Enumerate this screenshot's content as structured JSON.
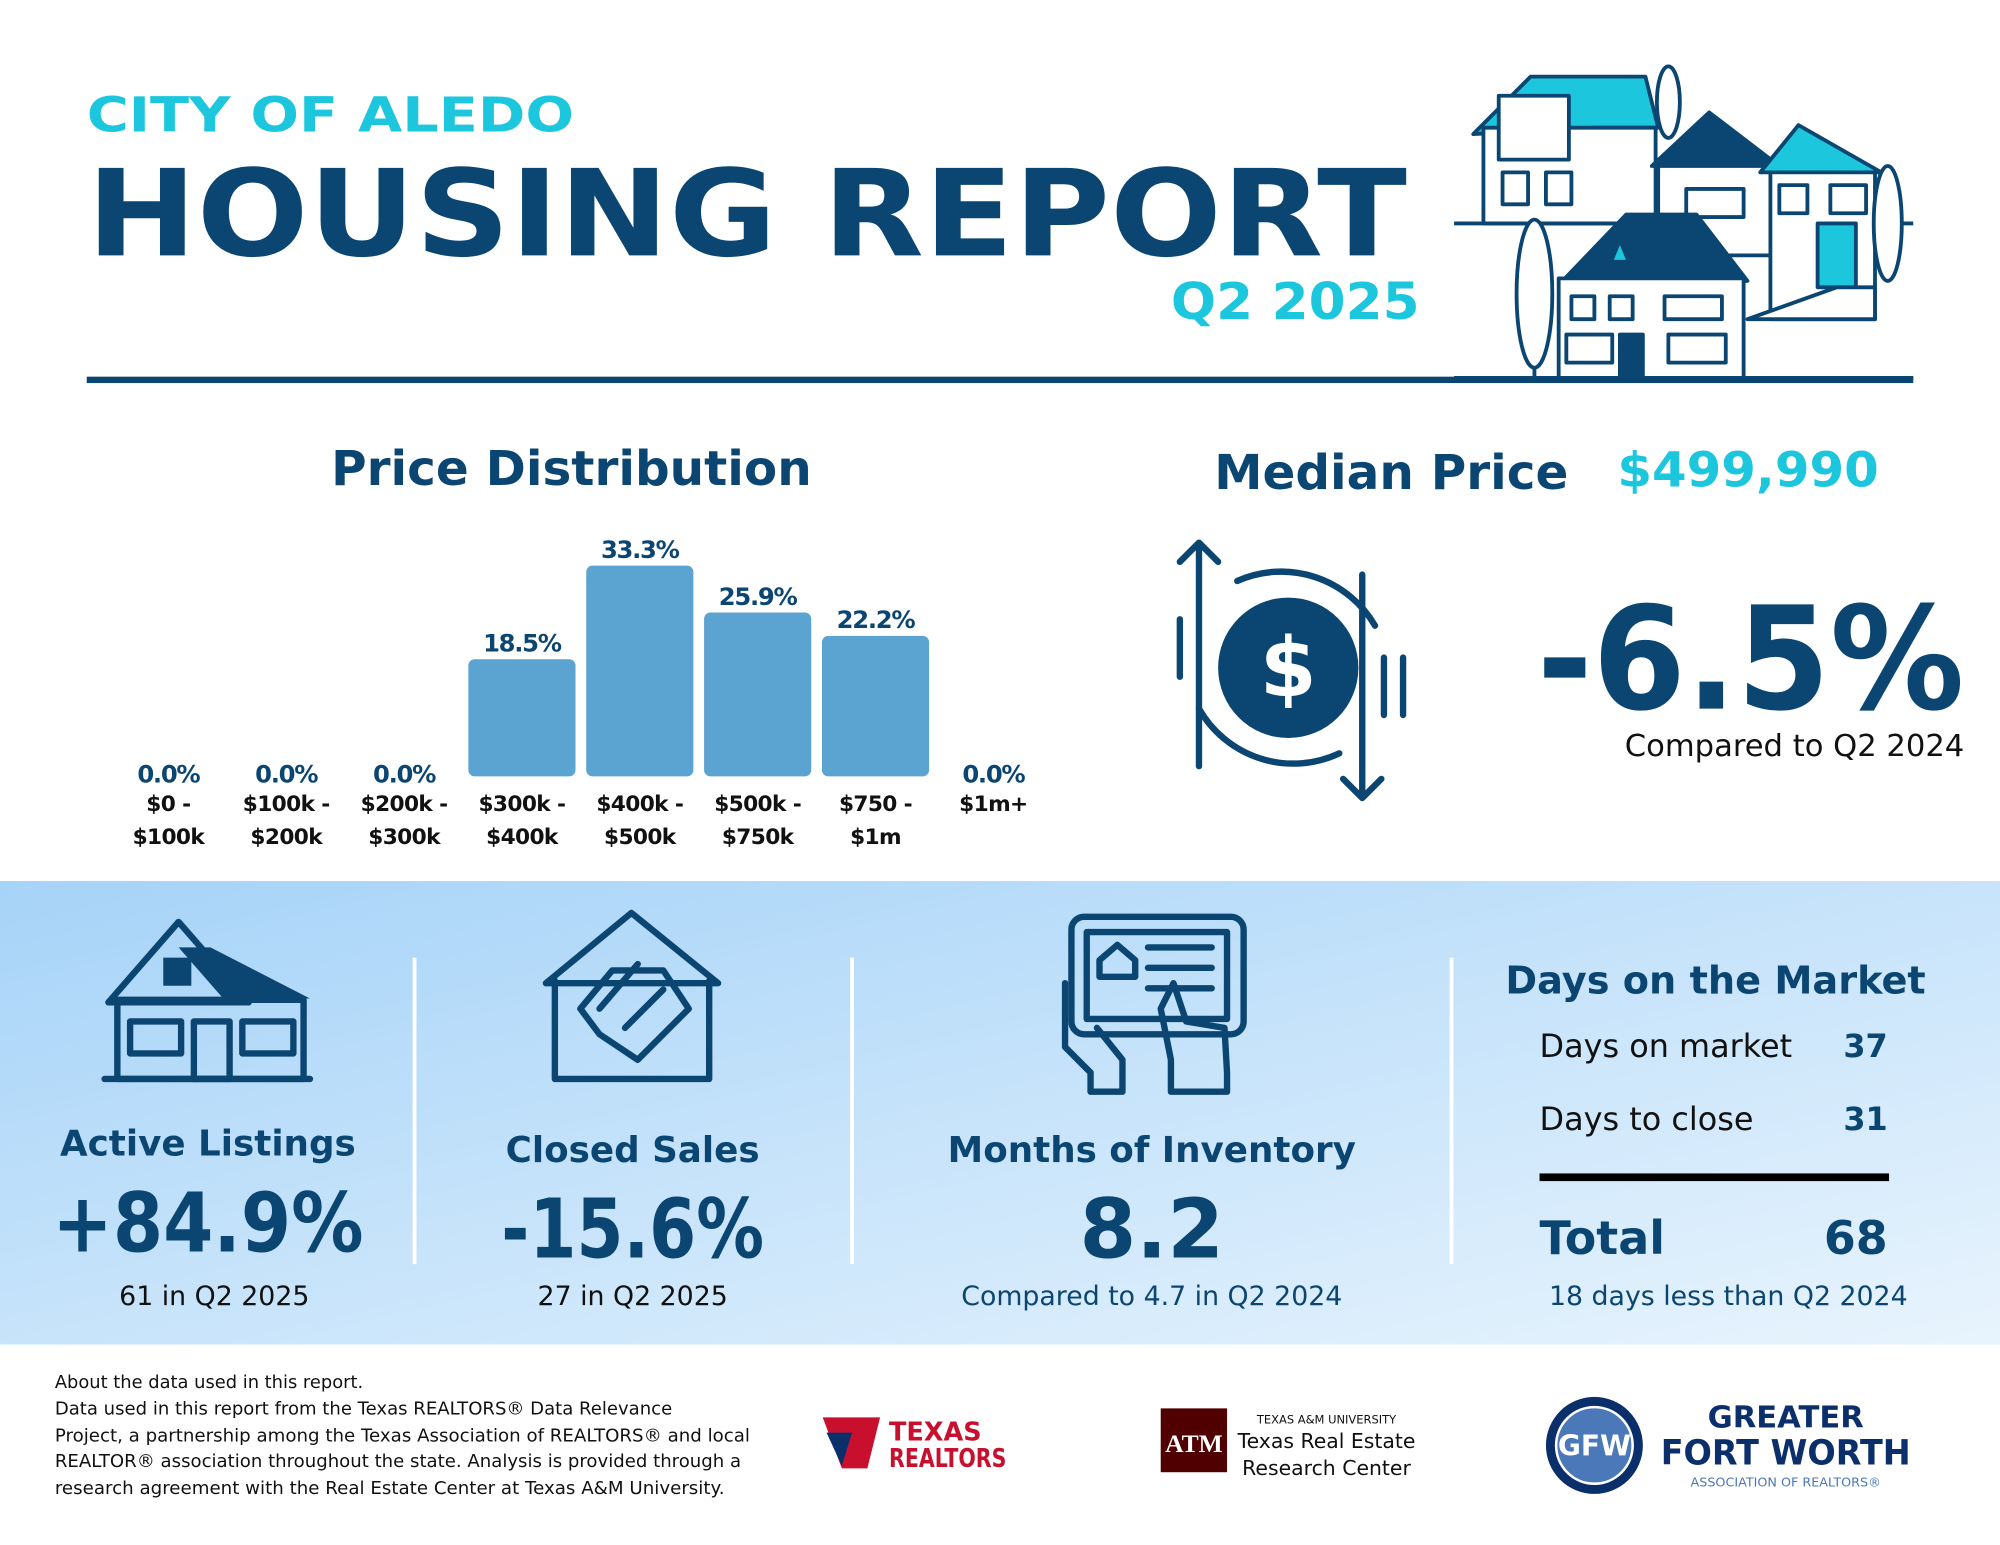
{
  "header": {
    "subtitle": "CITY OF ALEDO",
    "title": "HOUSING REPORT",
    "period": "Q2 2025"
  },
  "chart_data": {
    "type": "bar",
    "title": "Price Distribution",
    "categories": [
      "$0 - $100k",
      "$100k - $200k",
      "$200k - $300k",
      "$300k - $400k",
      "$400k - $500k",
      "$500k - $750k",
      "$750 - $1m",
      "$1m+"
    ],
    "values": [
      0.0,
      0.0,
      0.0,
      18.5,
      33.3,
      25.9,
      22.2,
      0.0
    ],
    "value_labels": [
      "0.0%",
      "0.0%",
      "0.0%",
      "18.5%",
      "33.3%",
      "25.9%",
      "22.2%",
      "0.0%"
    ],
    "color": "#5ba3d0"
  },
  "median_price": {
    "label": "Median Price",
    "value": "$499,990",
    "change": "-6.5%",
    "note": "Compared to Q2 2024"
  },
  "stats": [
    {
      "title": "Active Listings",
      "value": "+84.9%",
      "note": "61 in Q2 2025"
    },
    {
      "title": "Closed Sales",
      "value": "-15.6%",
      "note": "27 in Q2 2025"
    },
    {
      "title": "Months of Inventory",
      "value": "8.2",
      "note": "Compared to 4.7 in Q2 2024"
    }
  ],
  "days_on_market": {
    "title": "Days on the Market",
    "rows": [
      [
        "Days on market",
        "37"
      ],
      [
        "Days to close",
        "31"
      ]
    ],
    "total": [
      "Total",
      "68"
    ],
    "note": "18 days less than Q2 2024"
  },
  "footer": {
    "lines": [
      "About the data used in this report.",
      "Data used in this report from the Texas REALTORS® Data Relevance",
      "Project, a partnership among the Texas Association of REALTORS® and local",
      "REALTOR® association throughout the state. Analysis is provided through a",
      "research agreement with the Real Estate Center at Texas A&M University."
    ]
  },
  "logos": {
    "texas_realtors": [
      "TEXAS",
      "REALTORS"
    ],
    "tamu": [
      "TEXAS A&M UNIVERSITY",
      "Texas Real Estate",
      "Research Center"
    ],
    "gfw": [
      "GREATER",
      "FORT WORTH",
      "ASSOCIATION OF REALTORS®"
    ]
  }
}
